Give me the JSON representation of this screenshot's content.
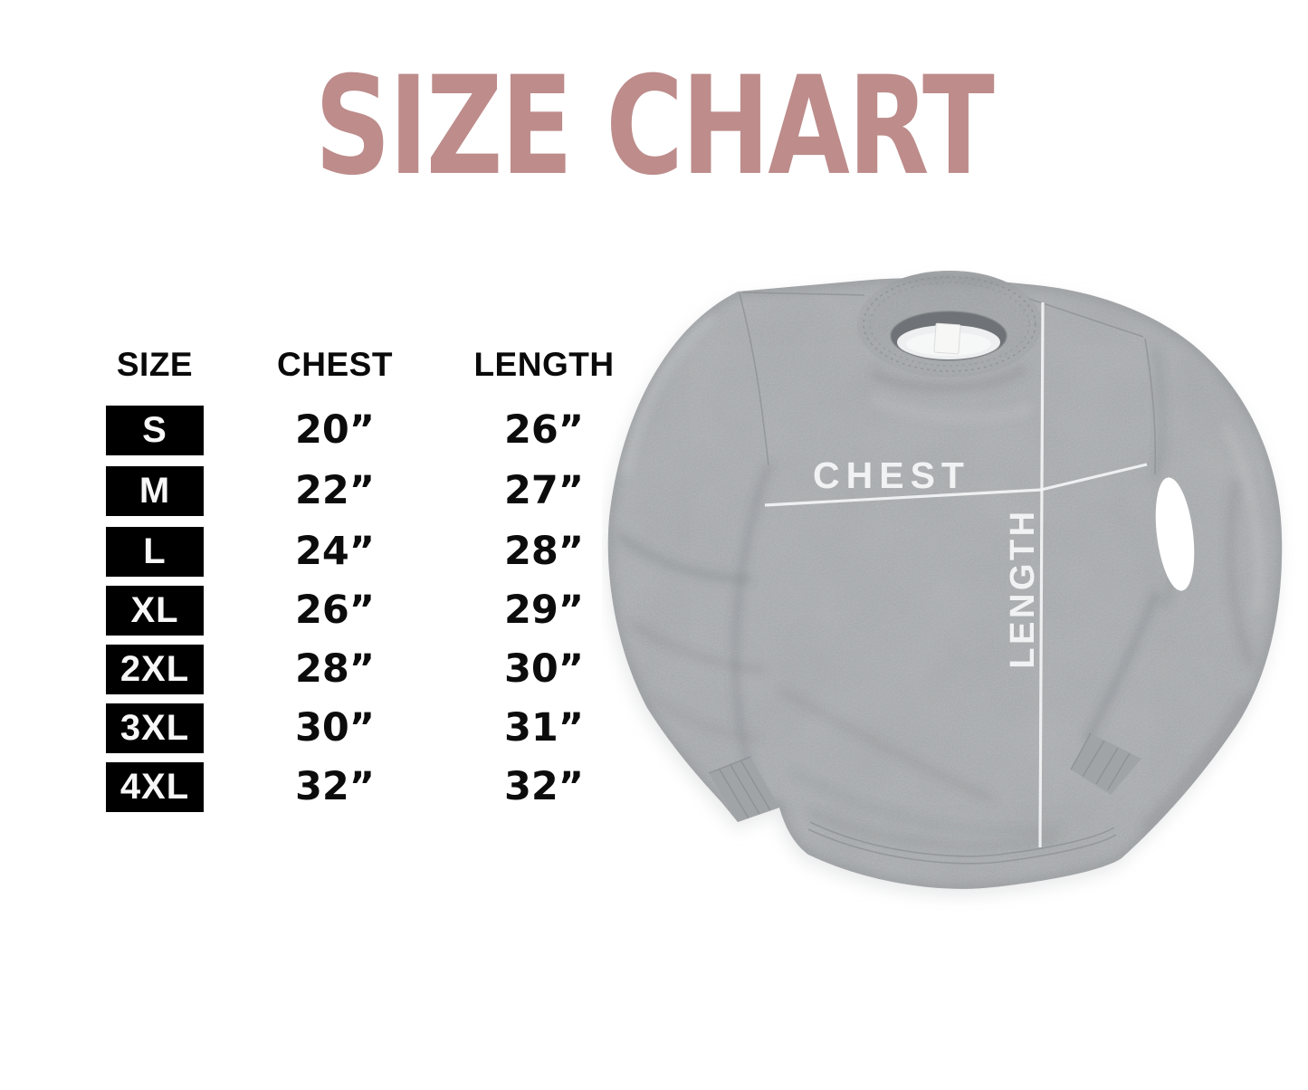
{
  "title": "SIZE CHART",
  "title_color": "#bd8c8b",
  "table": {
    "headers": {
      "size": "SIZE",
      "chest": "CHEST",
      "length": "LENGTH"
    },
    "rows": [
      {
        "size": "S",
        "chest": "20”",
        "length": "26”"
      },
      {
        "size": "M",
        "chest": "22”",
        "length": "27”"
      },
      {
        "size": "L",
        "chest": "24”",
        "length": "28”"
      },
      {
        "size": "XL",
        "chest": "26”",
        "length": "29”"
      },
      {
        "size": "2XL",
        "chest": "28”",
        "length": "30”"
      },
      {
        "size": "3XL",
        "chest": "30”",
        "length": "31”"
      },
      {
        "size": "4XL",
        "chest": "32”",
        "length": "32”"
      }
    ],
    "badge_bg": "#000000",
    "badge_text_color": "#f7f7f7"
  },
  "garment": {
    "chest_line_label": "CHEST",
    "length_line_label": "LENGTH",
    "fabric_color": "#aaadb0",
    "measure_line_color": "#f3f5f6"
  },
  "chart_data": {
    "type": "table",
    "title": "SIZE CHART",
    "columns": [
      "SIZE",
      "CHEST",
      "LENGTH"
    ],
    "rows": [
      [
        "S",
        "20”",
        "26”"
      ],
      [
        "M",
        "22”",
        "27”"
      ],
      [
        "L",
        "24”",
        "28”"
      ],
      [
        "XL",
        "26”",
        "29”"
      ],
      [
        "2XL",
        "28”",
        "30”"
      ],
      [
        "3XL",
        "30”",
        "31”"
      ],
      [
        "4XL",
        "32”",
        "32”"
      ]
    ]
  }
}
